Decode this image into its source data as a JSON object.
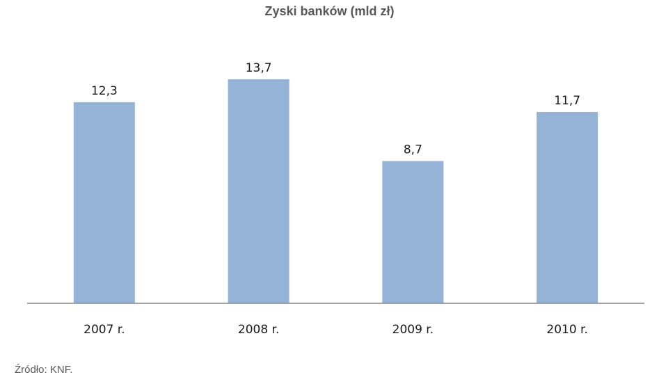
{
  "chart_data": {
    "type": "bar",
    "title": "Zyski banków (mld zł)",
    "categories": [
      "2007 r.",
      "2008 r.",
      "2009 r.",
      "2010 r."
    ],
    "values": [
      12.3,
      13.7,
      8.7,
      11.7
    ],
    "data_labels": [
      "12,3",
      "13,7",
      "8,7",
      "11,7"
    ],
    "xlabel": "",
    "ylabel": "",
    "ylim": [
      0,
      15
    ],
    "grid": false,
    "legend": "none",
    "colors": {
      "bar": "#95b3d7",
      "axis": "#868686",
      "title": "#595959"
    }
  },
  "source": "Źródło: KNF."
}
